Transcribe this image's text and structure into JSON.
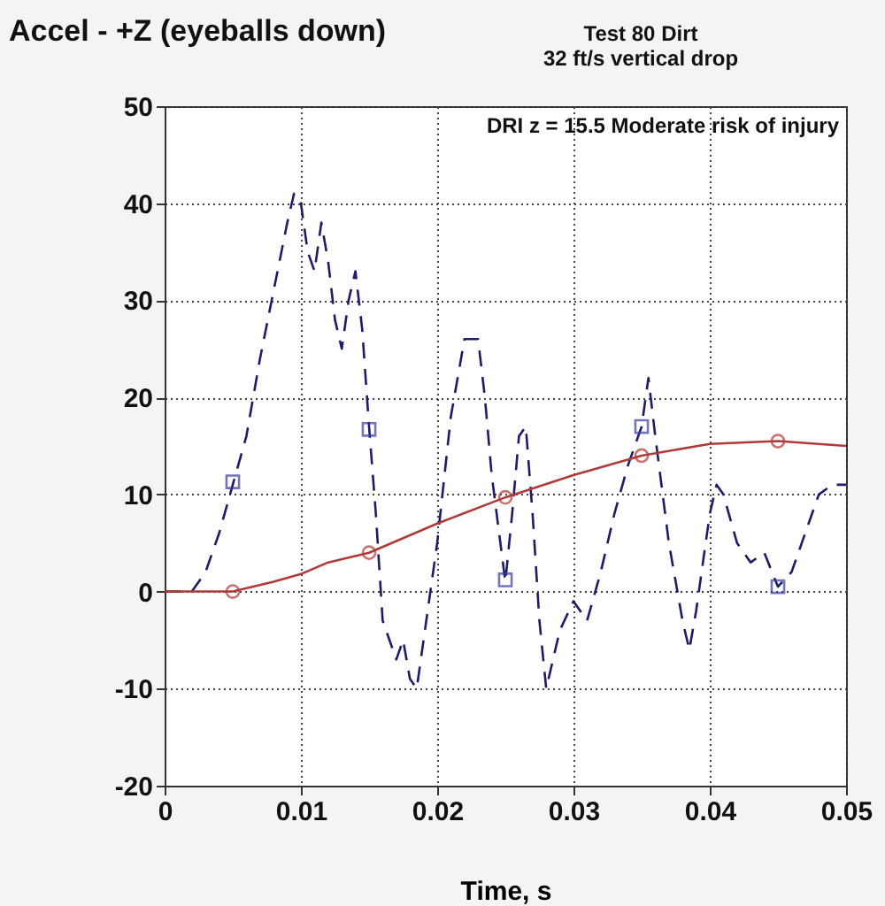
{
  "chart_data": {
    "type": "line",
    "title": "Accel - +Z (eyeballs down)",
    "subtitle": "Test 80 Dirt\n32 ft/s vertical drop",
    "xlabel": "Time, s",
    "annotations": [
      "DRI z = 15.5 Moderate risk of injury"
    ],
    "series": [
      {
        "color": "#1c1c6a",
        "line_style": "dashed",
        "marker": "none",
        "x": [
          0,
          0.002,
          0.003,
          0.004,
          0.005,
          0.006,
          0.007,
          0.008,
          0.009,
          0.0095,
          0.01,
          0.0105,
          0.011,
          0.0115,
          0.012,
          0.0125,
          0.013,
          0.0135,
          0.014,
          0.0145,
          0.015,
          0.0155,
          0.016,
          0.017,
          0.0175,
          0.018,
          0.0185,
          0.019,
          0.02,
          0.021,
          0.022,
          0.023,
          0.0235,
          0.024,
          0.025,
          0.0255,
          0.026,
          0.0265,
          0.027,
          0.0275,
          0.028,
          0.029,
          0.03,
          0.031,
          0.032,
          0.033,
          0.034,
          0.035,
          0.0355,
          0.036,
          0.037,
          0.038,
          0.0385,
          0.039,
          0.04,
          0.0405,
          0.041,
          0.042,
          0.043,
          0.044,
          0.045,
          0.046,
          0.047,
          0.048,
          0.049,
          0.05
        ],
        "values": [
          0,
          0,
          2,
          6,
          11,
          16,
          24,
          31,
          38,
          41,
          40,
          35,
          33,
          38,
          34,
          28,
          25,
          30,
          33,
          27,
          17,
          8,
          -3,
          -7,
          -5,
          -9,
          -10,
          -5,
          5,
          18,
          26,
          26,
          20,
          12,
          1,
          8,
          16,
          17,
          8,
          -3,
          -10,
          -4,
          -1,
          -3,
          2,
          8,
          13,
          17,
          22,
          16,
          5,
          -3,
          -6,
          -2,
          8,
          11,
          10,
          5,
          3,
          4,
          0.5,
          2,
          6,
          10,
          11,
          11
        ]
      },
      {
        "type": "scatter",
        "color": "#3a3aa0",
        "marker": "square",
        "x": [
          0.005,
          0.015,
          0.025,
          0.035,
          0.045
        ],
        "values": [
          11.3,
          16.7,
          1.2,
          17,
          0.5
        ]
      },
      {
        "color": "#b03a3a",
        "line_style": "solid",
        "marker": "none",
        "x": [
          0,
          0.005,
          0.008,
          0.01,
          0.012,
          0.015,
          0.02,
          0.025,
          0.03,
          0.035,
          0.04,
          0.045,
          0.05
        ],
        "values": [
          0,
          0,
          1,
          1.8,
          3,
          4,
          7,
          9.7,
          12,
          14,
          15.2,
          15.5,
          15
        ]
      },
      {
        "type": "scatter",
        "color": "#b03a3a",
        "marker": "circle",
        "x": [
          0.005,
          0.015,
          0.025,
          0.035,
          0.045
        ],
        "values": [
          0,
          4,
          9.7,
          14,
          15.5
        ]
      }
    ],
    "xlim": [
      0,
      0.05
    ],
    "xticks": [
      0,
      0.01,
      0.02,
      0.03,
      0.04,
      0.05
    ],
    "ylim": [
      -20,
      50
    ],
    "yticks": [
      -20,
      -10,
      0,
      10,
      20,
      30,
      40,
      50
    ],
    "grid": true
  }
}
